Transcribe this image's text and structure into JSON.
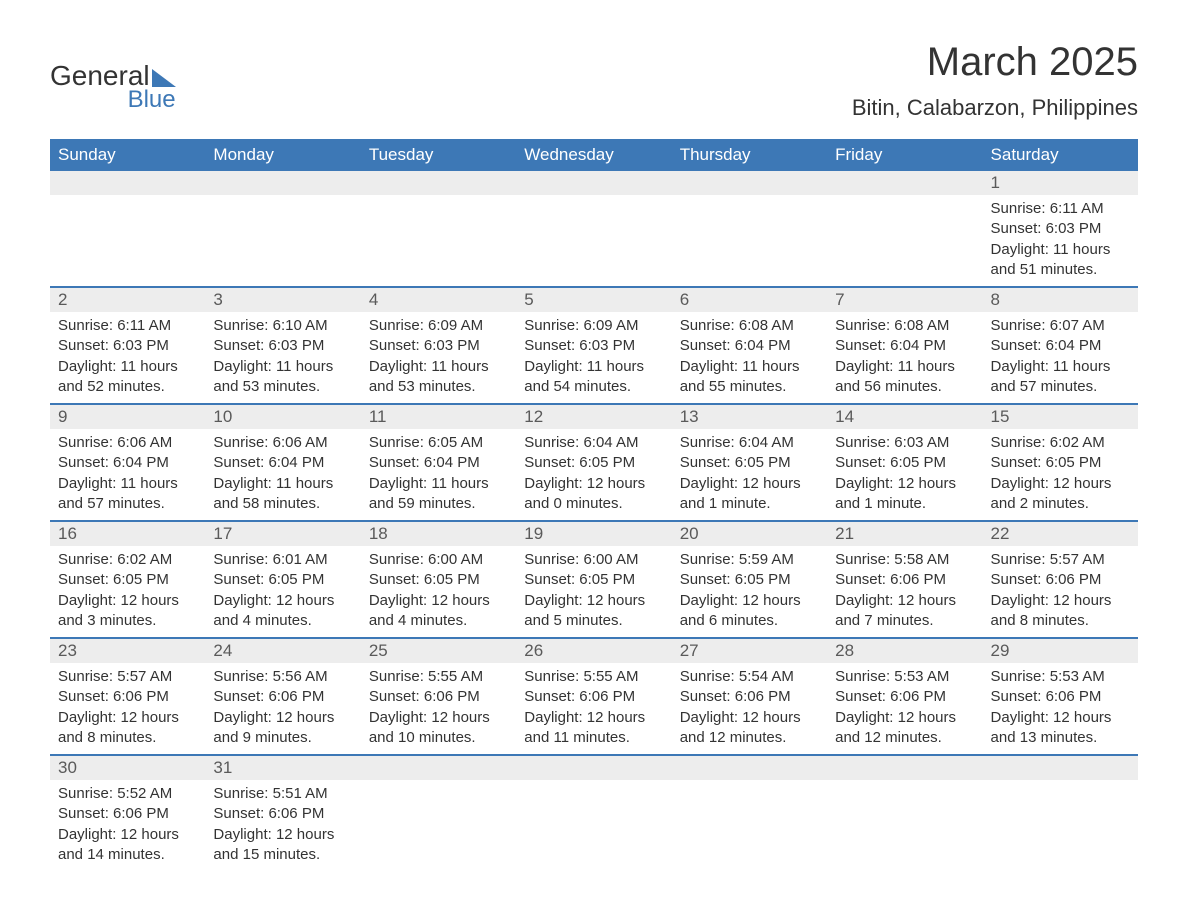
{
  "brand": {
    "name_a": "General",
    "name_b": "Blue"
  },
  "title": "March 2025",
  "location": "Bitin, Calabarzon, Philippines",
  "colors": {
    "header_bg": "#3d78b6",
    "header_text": "#ffffff",
    "daynum_bg": "#ededed",
    "border": "#3d78b6",
    "text": "#333333",
    "background": "#ffffff"
  },
  "typography": {
    "title_fontsize": 40,
    "location_fontsize": 22,
    "header_fontsize": 17,
    "daynum_fontsize": 17,
    "body_fontsize": 15,
    "font_family": "Arial"
  },
  "weekdays": [
    "Sunday",
    "Monday",
    "Tuesday",
    "Wednesday",
    "Thursday",
    "Friday",
    "Saturday"
  ],
  "weeks": [
    [
      {
        "n": "",
        "sunrise": "",
        "sunset": "",
        "daylight": ""
      },
      {
        "n": "",
        "sunrise": "",
        "sunset": "",
        "daylight": ""
      },
      {
        "n": "",
        "sunrise": "",
        "sunset": "",
        "daylight": ""
      },
      {
        "n": "",
        "sunrise": "",
        "sunset": "",
        "daylight": ""
      },
      {
        "n": "",
        "sunrise": "",
        "sunset": "",
        "daylight": ""
      },
      {
        "n": "",
        "sunrise": "",
        "sunset": "",
        "daylight": ""
      },
      {
        "n": "1",
        "sunrise": "Sunrise: 6:11 AM",
        "sunset": "Sunset: 6:03 PM",
        "daylight": "Daylight: 11 hours and 51 minutes."
      }
    ],
    [
      {
        "n": "2",
        "sunrise": "Sunrise: 6:11 AM",
        "sunset": "Sunset: 6:03 PM",
        "daylight": "Daylight: 11 hours and 52 minutes."
      },
      {
        "n": "3",
        "sunrise": "Sunrise: 6:10 AM",
        "sunset": "Sunset: 6:03 PM",
        "daylight": "Daylight: 11 hours and 53 minutes."
      },
      {
        "n": "4",
        "sunrise": "Sunrise: 6:09 AM",
        "sunset": "Sunset: 6:03 PM",
        "daylight": "Daylight: 11 hours and 53 minutes."
      },
      {
        "n": "5",
        "sunrise": "Sunrise: 6:09 AM",
        "sunset": "Sunset: 6:03 PM",
        "daylight": "Daylight: 11 hours and 54 minutes."
      },
      {
        "n": "6",
        "sunrise": "Sunrise: 6:08 AM",
        "sunset": "Sunset: 6:04 PM",
        "daylight": "Daylight: 11 hours and 55 minutes."
      },
      {
        "n": "7",
        "sunrise": "Sunrise: 6:08 AM",
        "sunset": "Sunset: 6:04 PM",
        "daylight": "Daylight: 11 hours and 56 minutes."
      },
      {
        "n": "8",
        "sunrise": "Sunrise: 6:07 AM",
        "sunset": "Sunset: 6:04 PM",
        "daylight": "Daylight: 11 hours and 57 minutes."
      }
    ],
    [
      {
        "n": "9",
        "sunrise": "Sunrise: 6:06 AM",
        "sunset": "Sunset: 6:04 PM",
        "daylight": "Daylight: 11 hours and 57 minutes."
      },
      {
        "n": "10",
        "sunrise": "Sunrise: 6:06 AM",
        "sunset": "Sunset: 6:04 PM",
        "daylight": "Daylight: 11 hours and 58 minutes."
      },
      {
        "n": "11",
        "sunrise": "Sunrise: 6:05 AM",
        "sunset": "Sunset: 6:04 PM",
        "daylight": "Daylight: 11 hours and 59 minutes."
      },
      {
        "n": "12",
        "sunrise": "Sunrise: 6:04 AM",
        "sunset": "Sunset: 6:05 PM",
        "daylight": "Daylight: 12 hours and 0 minutes."
      },
      {
        "n": "13",
        "sunrise": "Sunrise: 6:04 AM",
        "sunset": "Sunset: 6:05 PM",
        "daylight": "Daylight: 12 hours and 1 minute."
      },
      {
        "n": "14",
        "sunrise": "Sunrise: 6:03 AM",
        "sunset": "Sunset: 6:05 PM",
        "daylight": "Daylight: 12 hours and 1 minute."
      },
      {
        "n": "15",
        "sunrise": "Sunrise: 6:02 AM",
        "sunset": "Sunset: 6:05 PM",
        "daylight": "Daylight: 12 hours and 2 minutes."
      }
    ],
    [
      {
        "n": "16",
        "sunrise": "Sunrise: 6:02 AM",
        "sunset": "Sunset: 6:05 PM",
        "daylight": "Daylight: 12 hours and 3 minutes."
      },
      {
        "n": "17",
        "sunrise": "Sunrise: 6:01 AM",
        "sunset": "Sunset: 6:05 PM",
        "daylight": "Daylight: 12 hours and 4 minutes."
      },
      {
        "n": "18",
        "sunrise": "Sunrise: 6:00 AM",
        "sunset": "Sunset: 6:05 PM",
        "daylight": "Daylight: 12 hours and 4 minutes."
      },
      {
        "n": "19",
        "sunrise": "Sunrise: 6:00 AM",
        "sunset": "Sunset: 6:05 PM",
        "daylight": "Daylight: 12 hours and 5 minutes."
      },
      {
        "n": "20",
        "sunrise": "Sunrise: 5:59 AM",
        "sunset": "Sunset: 6:05 PM",
        "daylight": "Daylight: 12 hours and 6 minutes."
      },
      {
        "n": "21",
        "sunrise": "Sunrise: 5:58 AM",
        "sunset": "Sunset: 6:06 PM",
        "daylight": "Daylight: 12 hours and 7 minutes."
      },
      {
        "n": "22",
        "sunrise": "Sunrise: 5:57 AM",
        "sunset": "Sunset: 6:06 PM",
        "daylight": "Daylight: 12 hours and 8 minutes."
      }
    ],
    [
      {
        "n": "23",
        "sunrise": "Sunrise: 5:57 AM",
        "sunset": "Sunset: 6:06 PM",
        "daylight": "Daylight: 12 hours and 8 minutes."
      },
      {
        "n": "24",
        "sunrise": "Sunrise: 5:56 AM",
        "sunset": "Sunset: 6:06 PM",
        "daylight": "Daylight: 12 hours and 9 minutes."
      },
      {
        "n": "25",
        "sunrise": "Sunrise: 5:55 AM",
        "sunset": "Sunset: 6:06 PM",
        "daylight": "Daylight: 12 hours and 10 minutes."
      },
      {
        "n": "26",
        "sunrise": "Sunrise: 5:55 AM",
        "sunset": "Sunset: 6:06 PM",
        "daylight": "Daylight: 12 hours and 11 minutes."
      },
      {
        "n": "27",
        "sunrise": "Sunrise: 5:54 AM",
        "sunset": "Sunset: 6:06 PM",
        "daylight": "Daylight: 12 hours and 12 minutes."
      },
      {
        "n": "28",
        "sunrise": "Sunrise: 5:53 AM",
        "sunset": "Sunset: 6:06 PM",
        "daylight": "Daylight: 12 hours and 12 minutes."
      },
      {
        "n": "29",
        "sunrise": "Sunrise: 5:53 AM",
        "sunset": "Sunset: 6:06 PM",
        "daylight": "Daylight: 12 hours and 13 minutes."
      }
    ],
    [
      {
        "n": "30",
        "sunrise": "Sunrise: 5:52 AM",
        "sunset": "Sunset: 6:06 PM",
        "daylight": "Daylight: 12 hours and 14 minutes."
      },
      {
        "n": "31",
        "sunrise": "Sunrise: 5:51 AM",
        "sunset": "Sunset: 6:06 PM",
        "daylight": "Daylight: 12 hours and 15 minutes."
      },
      {
        "n": "",
        "sunrise": "",
        "sunset": "",
        "daylight": ""
      },
      {
        "n": "",
        "sunrise": "",
        "sunset": "",
        "daylight": ""
      },
      {
        "n": "",
        "sunrise": "",
        "sunset": "",
        "daylight": ""
      },
      {
        "n": "",
        "sunrise": "",
        "sunset": "",
        "daylight": ""
      },
      {
        "n": "",
        "sunrise": "",
        "sunset": "",
        "daylight": ""
      }
    ]
  ]
}
